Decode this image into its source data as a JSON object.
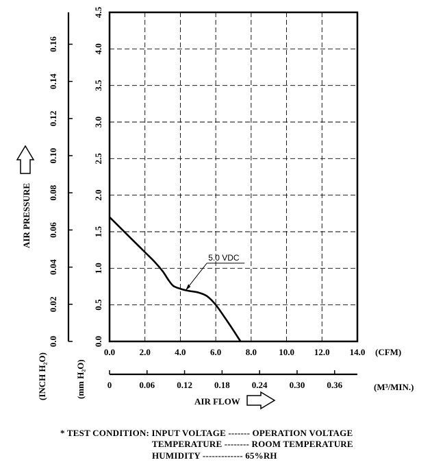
{
  "chart_data": {
    "type": "line",
    "series": [
      {
        "name": "5.0 VDC",
        "x": [
          0.0,
          0.5,
          1.0,
          1.5,
          2.0,
          2.5,
          3.0,
          3.3,
          3.6,
          4.0,
          4.5,
          5.0,
          5.5,
          6.0,
          6.5,
          7.0,
          7.4
        ],
        "y": [
          1.7,
          1.58,
          1.46,
          1.34,
          1.22,
          1.1,
          0.96,
          0.85,
          0.76,
          0.72,
          0.69,
          0.67,
          0.62,
          0.5,
          0.33,
          0.15,
          0.0
        ]
      }
    ],
    "series_label_text": "5.0 VDC",
    "x_axis": {
      "label": "(CFM)",
      "ticks": [
        "0.0",
        "2.0",
        "4.0",
        "6.0",
        "8.0",
        "10.0",
        "12.0",
        "14.0"
      ],
      "range": [
        0,
        14
      ]
    },
    "x_axis_secondary": {
      "label": "(M³/MIN.)",
      "ticks": [
        "0",
        "0.06",
        "0.12",
        "0.18",
        "0.24",
        "0.30",
        "0.36"
      ]
    },
    "x_title": "AIR FLOW",
    "y_axis": {
      "label": "(mm H₂O)",
      "ticks": [
        "0.0",
        "0.5",
        "1.0",
        "1.5",
        "2.0",
        "2.5",
        "3.0",
        "3.5",
        "4.0",
        "4.5"
      ],
      "range": [
        0,
        4.5
      ]
    },
    "y_axis_secondary": {
      "label": "(INCH H₂O)",
      "ticks": [
        "0.0",
        "0.02",
        "0.04",
        "0.06",
        "0.08",
        "0.10",
        "0.12",
        "0.14",
        "0.16"
      ]
    },
    "y_title": "AIR PRESSURE",
    "grid": true
  },
  "test_condition": {
    "line1": "* TEST CONDITION: INPUT VOLTAGE ------- OPERATION VOLTAGE",
    "line2": "TEMPERATURE -------- ROOM TEMPERATURE",
    "line3": "HUMIDITY ------------- 65%RH"
  }
}
